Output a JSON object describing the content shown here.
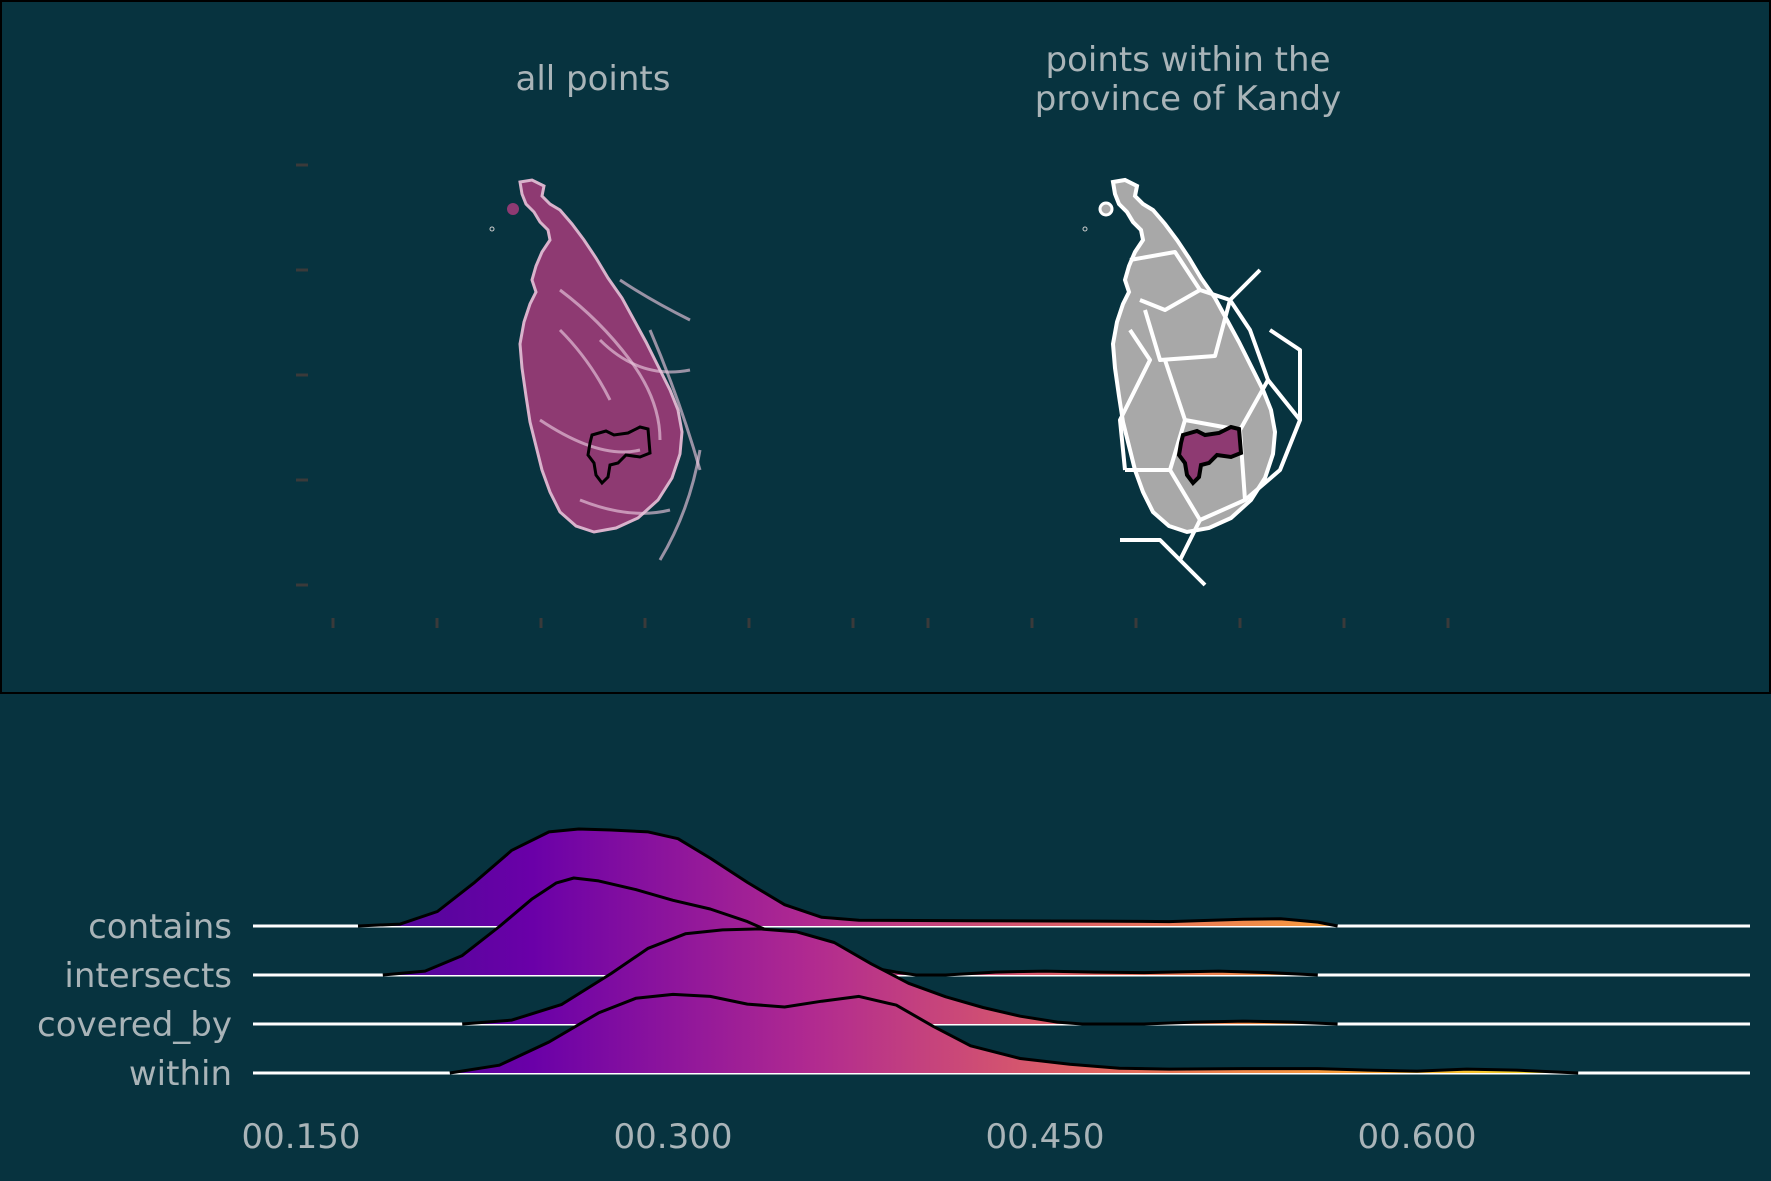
{
  "colors": {
    "background": "#07333f",
    "frame": "#000000",
    "baseline": "#ffffff",
    "outline": "#000000",
    "map_fill_all": "#8e3a72",
    "map_fill_gray": "#a8a8a8",
    "map_borders": "#ffffff",
    "kandy_fill": "#8e3a72",
    "gradient": [
      "#3b0f8c",
      "#6a00a8",
      "#b12a90",
      "#e16462",
      "#fca636",
      "#f0f921"
    ]
  },
  "maps": {
    "panels": [
      {
        "title_lines": [
          "all points"
        ]
      },
      {
        "title_lines": [
          "points within the",
          "province of Kandy"
        ]
      }
    ]
  },
  "chart_data": {
    "type": "area",
    "subtype": "ridgeline",
    "categories": [
      "contains",
      "intersects",
      "covered_by",
      "within"
    ],
    "xlim": [
      0.15,
      0.67
    ],
    "xticks": [
      0.15,
      0.3,
      0.45,
      0.6
    ],
    "xtick_labels": [
      "00.150",
      "00.300",
      "00.450",
      "00.600"
    ],
    "fill": "gradient by x (plasma)",
    "series": [
      {
        "name": "contains",
        "points": [
          [
            0.173,
            0
          ],
          [
            0.19,
            0.02
          ],
          [
            0.205,
            0.15
          ],
          [
            0.22,
            0.45
          ],
          [
            0.235,
            0.78
          ],
          [
            0.25,
            0.97
          ],
          [
            0.262,
            1.0
          ],
          [
            0.275,
            0.99
          ],
          [
            0.29,
            0.97
          ],
          [
            0.302,
            0.9
          ],
          [
            0.315,
            0.7
          ],
          [
            0.33,
            0.45
          ],
          [
            0.345,
            0.22
          ],
          [
            0.36,
            0.09
          ],
          [
            0.375,
            0.06
          ],
          [
            0.42,
            0.055
          ],
          [
            0.47,
            0.05
          ],
          [
            0.5,
            0.045
          ],
          [
            0.53,
            0.07
          ],
          [
            0.545,
            0.075
          ],
          [
            0.56,
            0.04
          ],
          [
            0.568,
            0.0
          ]
        ]
      },
      {
        "name": "intersects",
        "points": [
          [
            0.183,
            0
          ],
          [
            0.2,
            0.04
          ],
          [
            0.215,
            0.2
          ],
          [
            0.23,
            0.5
          ],
          [
            0.243,
            0.78
          ],
          [
            0.253,
            0.95
          ],
          [
            0.26,
            1.0
          ],
          [
            0.27,
            0.97
          ],
          [
            0.285,
            0.88
          ],
          [
            0.3,
            0.77
          ],
          [
            0.315,
            0.68
          ],
          [
            0.33,
            0.55
          ],
          [
            0.345,
            0.38
          ],
          [
            0.36,
            0.22
          ],
          [
            0.375,
            0.1
          ],
          [
            0.39,
            0.03
          ],
          [
            0.398,
            0.0
          ],
          [
            0.41,
            0.0
          ],
          [
            0.43,
            0.03
          ],
          [
            0.45,
            0.04
          ],
          [
            0.47,
            0.03
          ],
          [
            0.49,
            0.025
          ],
          [
            0.52,
            0.04
          ],
          [
            0.54,
            0.025
          ],
          [
            0.56,
            0.0
          ]
        ]
      },
      {
        "name": "covered_by",
        "points": [
          [
            0.215,
            0
          ],
          [
            0.235,
            0.04
          ],
          [
            0.255,
            0.2
          ],
          [
            0.275,
            0.52
          ],
          [
            0.29,
            0.78
          ],
          [
            0.305,
            0.93
          ],
          [
            0.32,
            0.97
          ],
          [
            0.335,
            0.98
          ],
          [
            0.35,
            0.95
          ],
          [
            0.365,
            0.84
          ],
          [
            0.38,
            0.62
          ],
          [
            0.395,
            0.42
          ],
          [
            0.41,
            0.28
          ],
          [
            0.425,
            0.17
          ],
          [
            0.44,
            0.08
          ],
          [
            0.455,
            0.02
          ],
          [
            0.465,
            0.0
          ],
          [
            0.49,
            0.0
          ],
          [
            0.51,
            0.02
          ],
          [
            0.53,
            0.03
          ],
          [
            0.55,
            0.02
          ],
          [
            0.568,
            0.0
          ]
        ]
      },
      {
        "name": "within",
        "points": [
          [
            0.21,
            0
          ],
          [
            0.23,
            0.08
          ],
          [
            0.25,
            0.32
          ],
          [
            0.27,
            0.62
          ],
          [
            0.285,
            0.77
          ],
          [
            0.3,
            0.81
          ],
          [
            0.315,
            0.79
          ],
          [
            0.33,
            0.71
          ],
          [
            0.345,
            0.68
          ],
          [
            0.36,
            0.74
          ],
          [
            0.375,
            0.79
          ],
          [
            0.39,
            0.7
          ],
          [
            0.405,
            0.48
          ],
          [
            0.42,
            0.28
          ],
          [
            0.44,
            0.15
          ],
          [
            0.46,
            0.09
          ],
          [
            0.48,
            0.05
          ],
          [
            0.5,
            0.04
          ],
          [
            0.53,
            0.045
          ],
          [
            0.56,
            0.045
          ],
          [
            0.58,
            0.03
          ],
          [
            0.6,
            0.02
          ],
          [
            0.62,
            0.04
          ],
          [
            0.64,
            0.03
          ],
          [
            0.665,
            0.0
          ]
        ]
      }
    ]
  }
}
